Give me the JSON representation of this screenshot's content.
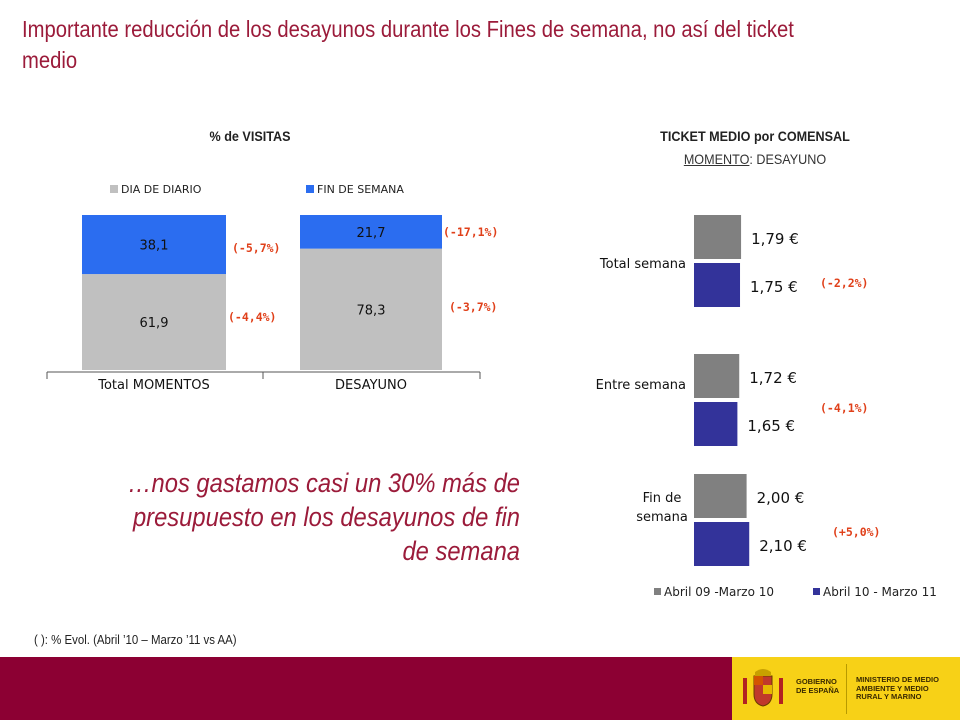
{
  "title": "Importante reducción de los desayunos durante los Fines de semana, no así del ticket medio",
  "left_panel": {
    "title": "% de VISITAS"
  },
  "right_panel": {
    "title": "TICKET MEDIO por COMENSAL",
    "subtitle_underlined": "MOMENTO",
    "subtitle_rest": ": DESAYUNO"
  },
  "quote": "…nos gastamos casi un 30% más de presupuesto en los desayunos de fin de semana",
  "footnote": "( ): % Evol. (Abril ’10 – Marzo ’11 vs AA)",
  "gov": {
    "gobierno": "GOBIERNO DE ESPAÑA",
    "ministerio": "MINISTERIO DE MEDIO AMBIENTE Y MEDIO RURAL Y MARINO"
  },
  "colors": {
    "brand": "#9b1b3a",
    "footer": "#8c0033",
    "dia": "#c0c0c0",
    "fin": "#2b6df0",
    "abril09": "#808080",
    "abril10": "#33339a",
    "evol": "#e0401a"
  },
  "chart_data": [
    {
      "type": "bar",
      "stacked": true,
      "title": "% de VISITAS",
      "categories": [
        "Total MOMENTOS",
        "DESAYUNO"
      ],
      "series": [
        {
          "name": "DIA DE DIARIO",
          "values": [
            61.9,
            78.3
          ],
          "labels": [
            "61,9",
            "78,3"
          ],
          "evol": [
            "(-4,4%)",
            "(-3,7%)"
          ]
        },
        {
          "name": "FIN DE SEMANA",
          "values": [
            38.1,
            21.7
          ],
          "labels": [
            "38,1",
            "21,7"
          ],
          "evol": [
            "(-5,7%)",
            "(-17,1%)"
          ]
        }
      ],
      "ylim": [
        0,
        100
      ],
      "legend": "top"
    },
    {
      "type": "bar",
      "orientation": "horizontal",
      "title": "TICKET MEDIO por COMENSAL",
      "categories": [
        "Total semana",
        "Entre semana",
        "Fin de semana"
      ],
      "series": [
        {
          "name": "Abril 09 -Marzo 10",
          "values": [
            1.79,
            1.72,
            2.0
          ],
          "labels": [
            "1,79 €",
            "1,72 €",
            "2,00 €"
          ]
        },
        {
          "name": "Abril 10 - Marzo 11",
          "values": [
            1.75,
            1.65,
            2.1
          ],
          "labels": [
            "1,75 €",
            "1,65 €",
            "2,10 €"
          ]
        }
      ],
      "evol": [
        "(-2,2%)",
        "(-4,1%)",
        "(+5,0%)"
      ],
      "legend": "bottom"
    }
  ]
}
